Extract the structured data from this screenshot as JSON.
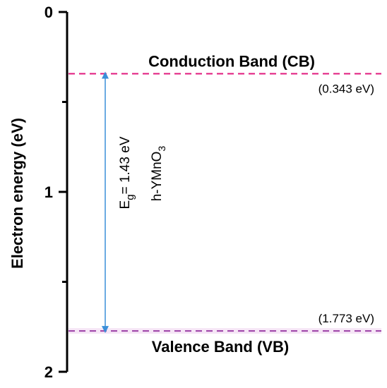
{
  "chart_data": {
    "type": "band-diagram",
    "ylabel": "Electron energy (eV)",
    "ylim": [
      0,
      2
    ],
    "y_inverted": true,
    "y_ticks": [
      0,
      1,
      2
    ],
    "y_tick_labels": [
      "0",
      "1",
      "2"
    ],
    "levels": [
      {
        "name": "Conduction Band (CB)",
        "value": 0.343,
        "value_label": "(0.343 eV)",
        "color": "#e0197d"
      },
      {
        "name": "Valence Band (VB)",
        "value": 1.773,
        "value_label": "(1.773 eV)",
        "color": "#9b3fa6"
      }
    ],
    "gap_arrow": {
      "from": 0.343,
      "to": 1.773,
      "color": "#3a8fd9"
    },
    "gap_text": {
      "prefix": "E",
      "subscript": "g",
      "suffix": "= 1.43 eV"
    },
    "material_text": {
      "main": "h-YMnO",
      "subscript": "3"
    },
    "vb_highlight_color": "#f6e6f6"
  }
}
